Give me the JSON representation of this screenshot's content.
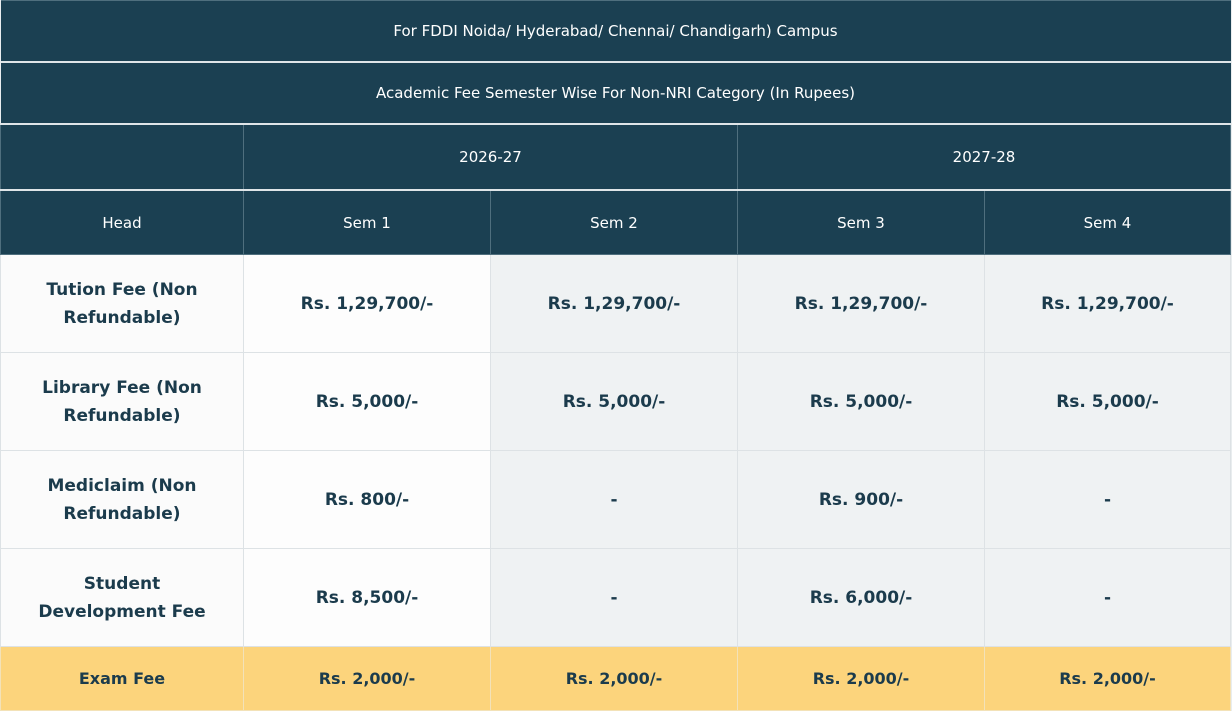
{
  "campus_title": "For FDDI Noida/ Hyderabad/ Chennai/ Chandigarh) Campus",
  "fee_title": "Academic Fee Semester Wise For Non-NRI Category (In Rupees)",
  "years": [
    "2026-27",
    "2027-28"
  ],
  "columns": [
    "Head",
    "Sem 1",
    "Sem 2",
    "Sem 3",
    "Sem 4"
  ],
  "rows": [
    {
      "head": "Tution Fee (Non Refundable)",
      "values": [
        "Rs. 1,29,700/-",
        "Rs. 1,29,700/-",
        "Rs. 1,29,700/-",
        "Rs. 1,29,700/-"
      ]
    },
    {
      "head": "Library Fee (Non Refundable)",
      "values": [
        "Rs. 5,000/-",
        "Rs. 5,000/-",
        "Rs. 5,000/-",
        "Rs. 5,000/-"
      ]
    },
    {
      "head": "Mediclaim (Non Refundable)",
      "values": [
        "Rs. 800/-",
        "-",
        "Rs. 900/-",
        "-"
      ]
    },
    {
      "head": "Student Development Fee",
      "values": [
        "Rs. 8,500/-",
        "-",
        "Rs. 6,000/-",
        "-"
      ]
    },
    {
      "head": "Exam Fee",
      "values": [
        "Rs. 2,000/-",
        "Rs. 2,000/-",
        "Rs. 2,000/-",
        "Rs. 2,000/-"
      ]
    }
  ],
  "colors": {
    "header": "#1b4052",
    "highlight_row": "#fcd47c",
    "text": "#1b3b4c"
  }
}
